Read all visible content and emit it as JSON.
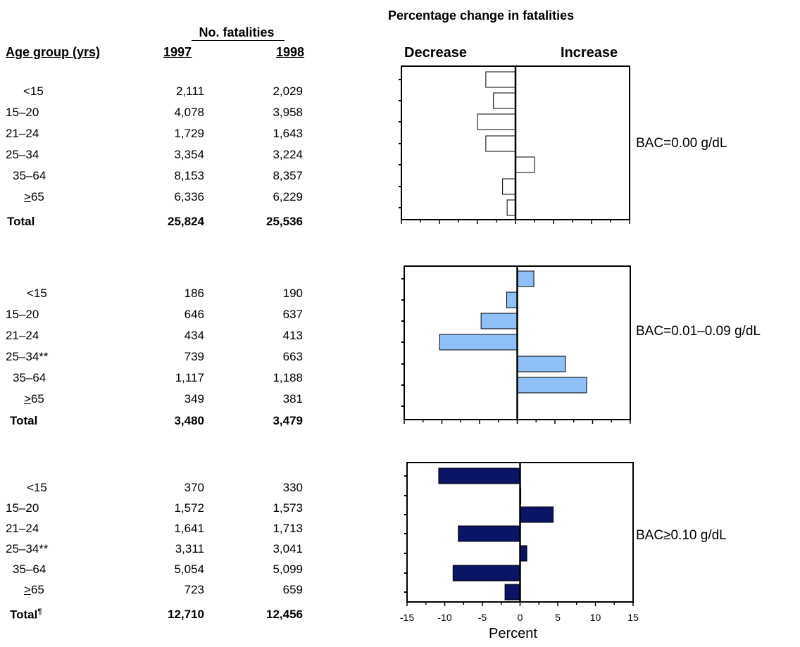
{
  "chart_title": "Percentage change in fatalities",
  "table_header": {
    "group_heading": "No. fatalities",
    "age_heading": "Age group (yrs)",
    "year1": "1997",
    "year2": "1998"
  },
  "chart_header": {
    "decrease": "Decrease",
    "increase": "Increase"
  },
  "panels": [
    {
      "label": "BAC=0.00 g/dL",
      "rows": [
        {
          "age": "<15",
          "ge": "",
          "y1997": "2,111",
          "y1998": "2,029"
        },
        {
          "age": "15–20",
          "ge": "",
          "y1997": "4,078",
          "y1998": "3,958"
        },
        {
          "age": "21–24",
          "ge": "",
          "y1997": "1,729",
          "y1998": "1,643"
        },
        {
          "age": "25–34",
          "ge": "",
          "y1997": "3,354",
          "y1998": "3,224"
        },
        {
          "age": "35–64",
          "ge": "",
          "y1997": "8,153",
          "y1998": "8,357"
        },
        {
          "age": "65",
          "ge": ">",
          "y1997": "6,336",
          "y1998": "6,229"
        }
      ],
      "total": {
        "label": "Total",
        "mark": "",
        "y1997": "25,824",
        "y1998": "25,536"
      }
    },
    {
      "label": "BAC=0.01–0.09 g/dL",
      "rows": [
        {
          "age": "<15",
          "ge": "",
          "y1997": "186",
          "y1998": "190"
        },
        {
          "age": "15–20",
          "ge": "",
          "y1997": "646",
          "y1998": "637"
        },
        {
          "age": "21–24",
          "ge": "",
          "y1997": "434",
          "y1998": "413"
        },
        {
          "age": "25–34**",
          "ge": "",
          "y1997": "739",
          "y1998": "663"
        },
        {
          "age": "35–64",
          "ge": "",
          "y1997": "1,117",
          "y1998": "1,188"
        },
        {
          "age": "65",
          "ge": ">",
          "y1997": "349",
          "y1998": "381"
        }
      ],
      "total": {
        "label": "Total",
        "mark": "",
        "y1997": "3,480",
        "y1998": "3,479"
      }
    },
    {
      "label": "BAC≥0.10 g/dL",
      "rows": [
        {
          "age": "<15",
          "ge": "",
          "y1997": "370",
          "y1998": "330"
        },
        {
          "age": "15–20",
          "ge": "",
          "y1997": "1,572",
          "y1998": "1,573"
        },
        {
          "age": "21–24",
          "ge": "",
          "y1997": "1,641",
          "y1998": "1,713"
        },
        {
          "age": "25–34**",
          "ge": "",
          "y1997": "3,311",
          "y1998": "3,041"
        },
        {
          "age": "35–64",
          "ge": "",
          "y1997": "5,054",
          "y1998": "5,099"
        },
        {
          "age": "65",
          "ge": ">",
          "y1997": "723",
          "y1998": "659"
        }
      ],
      "total": {
        "label": "Total",
        "mark": "¶",
        "y1997": "12,710",
        "y1998": "12,456"
      }
    }
  ],
  "chart_data": {
    "type": "bar",
    "orientation": "horizontal",
    "title": "Percentage change in fatalities",
    "xlabel": "Percent",
    "xlim": [
      -15,
      15
    ],
    "xticks": [
      "-15",
      "-10",
      "-5",
      "0",
      "5",
      "10",
      "15"
    ],
    "categories": [
      "<15",
      "15–20",
      "21–24",
      "25–34",
      "35–64",
      "≥65",
      "Total"
    ],
    "colors": [
      "#ffffff",
      "#8fc0f7",
      "#0a1464"
    ],
    "series": [
      {
        "name": "BAC=0.00 g/dL",
        "values": [
          -3.9,
          -2.9,
          -5.0,
          -3.9,
          2.5,
          -1.7,
          -1.1
        ]
      },
      {
        "name": "BAC=0.01–0.09 g/dL",
        "values": [
          2.2,
          -1.4,
          -4.8,
          -10.3,
          6.4,
          9.2,
          0.0
        ]
      },
      {
        "name": "BAC≥0.10 g/dL",
        "values": [
          -10.8,
          0.1,
          4.4,
          -8.2,
          0.9,
          -8.9,
          -2.0
        ]
      }
    ]
  }
}
